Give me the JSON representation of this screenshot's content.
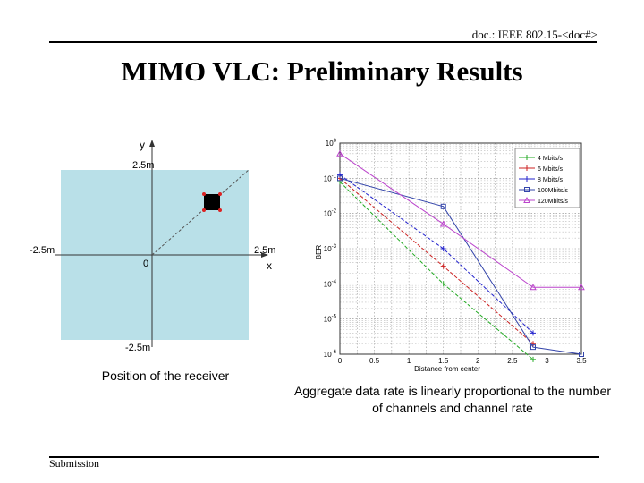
{
  "header": {
    "doc_label": "doc.: IEEE 802.15-<doc#>"
  },
  "title": "MIMO VLC: Preliminary Results",
  "diagram": {
    "y_axis_label": "y",
    "x_axis_label": "x",
    "top_label": "2.5m",
    "bottom_label": "-2.5m",
    "left_label": "-2.5m",
    "right_label": "2.5m",
    "origin_label": "0",
    "area_color": "#b9e0e8",
    "caption": "Position of the receiver"
  },
  "chart_data": {
    "type": "line",
    "title": "",
    "xlabel": "Distance from center",
    "ylabel": "BER",
    "x_ticks": [
      "0",
      "0.5",
      "1",
      "1.5",
      "2",
      "2.5",
      "3",
      "3.5"
    ],
    "y_scale": "log",
    "y_tick_exponents": [
      "0",
      "-1",
      "-2",
      "-3",
      "-4",
      "-5",
      "-6"
    ],
    "xlim": [
      0,
      3.5
    ],
    "ylim_log10": [
      -6,
      0
    ],
    "grid": true,
    "legend_position": "top-right",
    "series": [
      {
        "name": "4 Mbits/s",
        "color": "#22aa22",
        "marker": "plus",
        "x": [
          0,
          1.5,
          2.8
        ],
        "log10_y": [
          -1.1,
          -4.0,
          -6.2
        ]
      },
      {
        "name": "6 Mbits/s",
        "color": "#cc2222",
        "marker": "plus",
        "x": [
          0,
          1.5,
          2.8
        ],
        "log10_y": [
          -1.0,
          -3.5,
          -5.7
        ]
      },
      {
        "name": "8 Mbits/s",
        "color": "#2222cc",
        "marker": "plus",
        "x": [
          0,
          1.5,
          2.8
        ],
        "log10_y": [
          -0.9,
          -3.0,
          -5.4
        ]
      },
      {
        "name": "100Mbits/s",
        "color": "#3344aa",
        "marker": "square",
        "x": [
          0,
          1.5,
          2.8,
          3.5
        ],
        "log10_y": [
          -1.0,
          -1.8,
          -5.8,
          -6.0
        ]
      },
      {
        "name": "120Mbits/s",
        "color": "#bb44cc",
        "marker": "triangle",
        "x": [
          0,
          1.5,
          2.8,
          3.5
        ],
        "log10_y": [
          -0.3,
          -2.3,
          -4.1,
          -4.1
        ]
      }
    ],
    "caption": "Aggregate data rate is linearly proportional to the number of channels and channel rate"
  },
  "footer": {
    "label": "Submission"
  }
}
